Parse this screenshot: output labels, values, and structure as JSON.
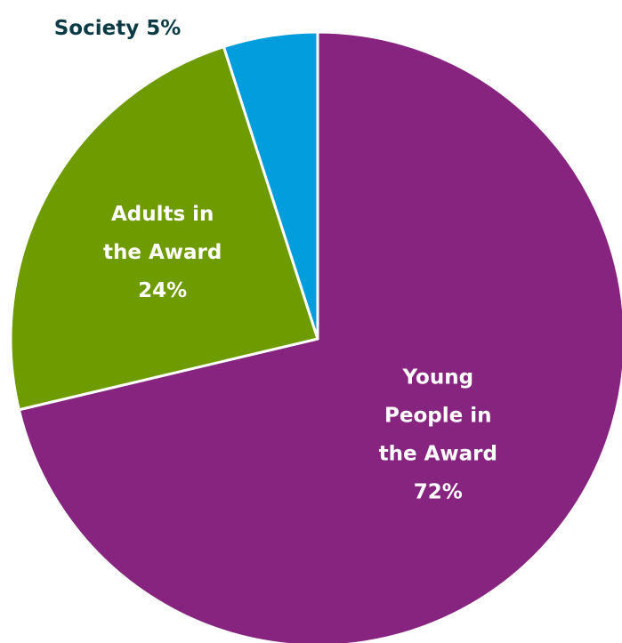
{
  "chart_data": {
    "type": "pie",
    "title": "",
    "start": "12 o'clock",
    "direction": "clockwise",
    "slices": [
      {
        "label_lines": [
          "Young",
          "People in",
          "the Award",
          "72%"
        ],
        "value": 72,
        "color": "#86247f",
        "label_color": "#ffffff",
        "label_placement": "inside"
      },
      {
        "label_lines": [
          "Adults in",
          "the Award",
          "24%"
        ],
        "value": 24,
        "color": "#6d9b00",
        "label_color": "#ffffff",
        "label_placement": "inside"
      },
      {
        "label_lines": [
          "Society 5%"
        ],
        "value": 5,
        "color": "#019ddc",
        "label_color": "#0d3b45",
        "label_placement": "outside-top-left"
      }
    ]
  }
}
